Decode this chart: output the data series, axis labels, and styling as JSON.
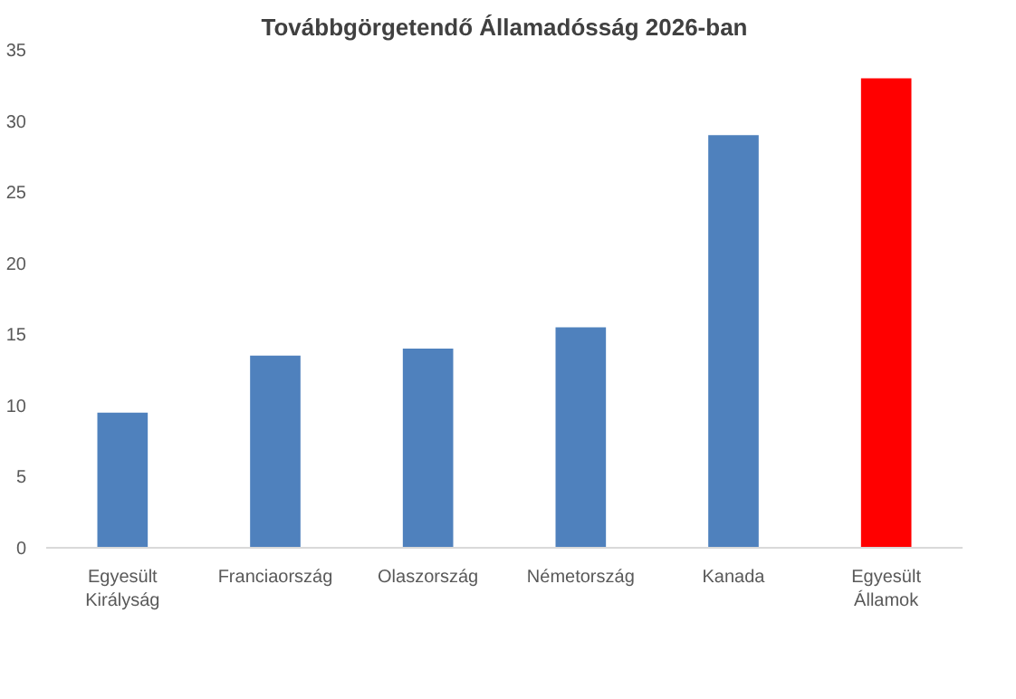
{
  "chart_data": {
    "type": "bar",
    "title": "Továbbgörgetendő Államadósság 2026-ban",
    "categories": [
      "Egyesült Királyság",
      "Franciaország",
      "Olaszország",
      "Németország",
      "Kanada",
      "Egyesült Államok"
    ],
    "values": [
      9.5,
      13.5,
      14,
      15.5,
      29,
      33
    ],
    "colors": [
      "#4f81bd",
      "#4f81bd",
      "#4f81bd",
      "#4f81bd",
      "#4f81bd",
      "#ff0000"
    ],
    "ylim": [
      0,
      35
    ],
    "yticks": [
      0,
      5,
      10,
      15,
      20,
      25,
      30,
      35
    ]
  }
}
